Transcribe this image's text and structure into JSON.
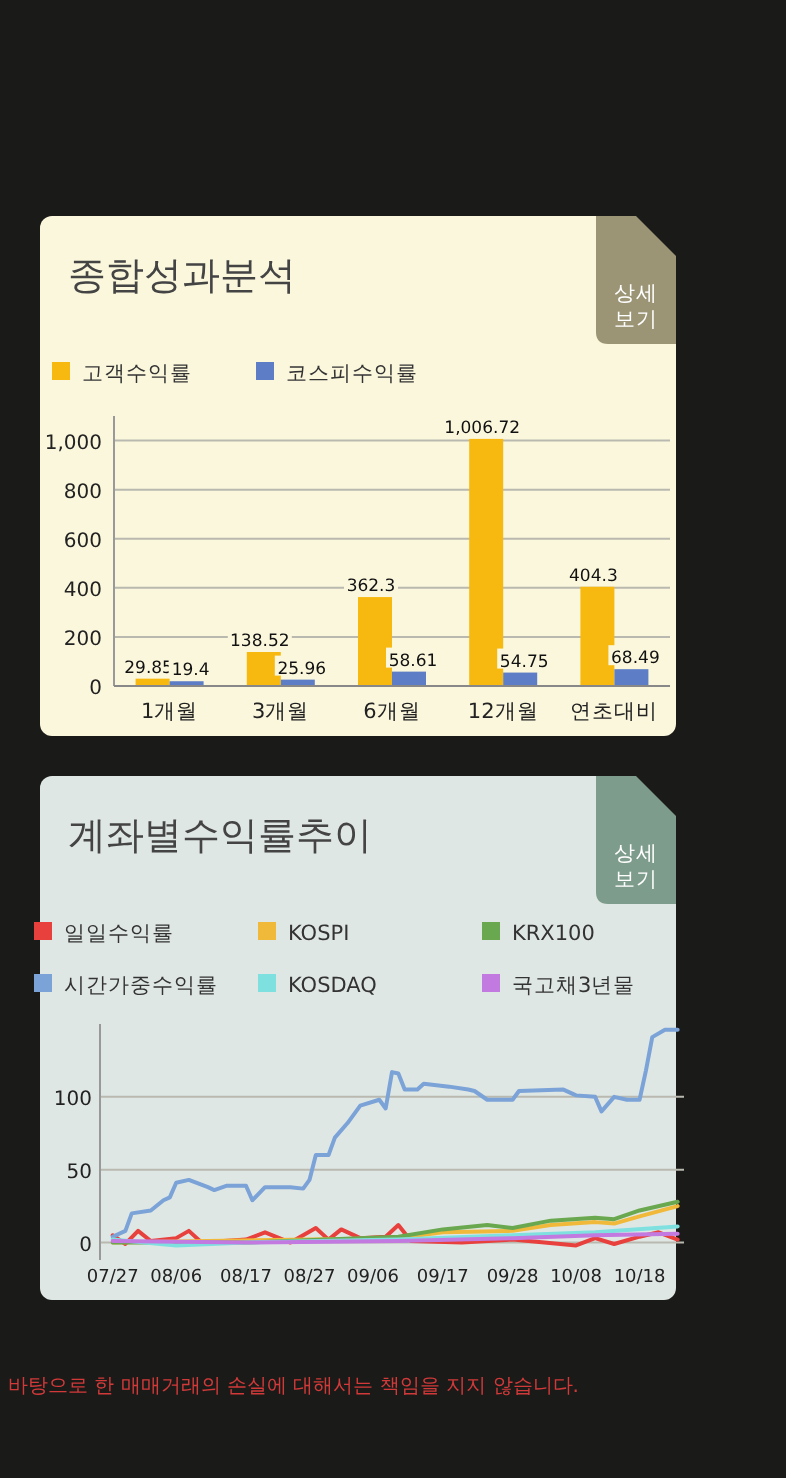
{
  "chart_data": [
    {
      "type": "bar",
      "title": "종합성과분석",
      "annotations": [
        "상세 보기"
      ],
      "categories": [
        "1개월",
        "3개월",
        "6개월",
        "12개월",
        "연초대비"
      ],
      "series": [
        {
          "name": "고객수익률",
          "color": "#f7b90f",
          "values": [
            29.85,
            138.52,
            362.3,
            1006.72,
            404.3
          ],
          "value_labels": [
            "29.85",
            "138.52",
            "362.3",
            "1,006.72",
            "404.3"
          ]
        },
        {
          "name": "코스피수익률",
          "color": "#5d7ec6",
          "values": [
            19.4,
            25.96,
            58.61,
            54.75,
            68.49
          ],
          "value_labels": [
            "19.4",
            "25.96",
            "58.61",
            "54.75",
            "68.49"
          ]
        }
      ],
      "ylim": [
        0,
        1100
      ],
      "yticks": [
        0,
        200,
        400,
        600,
        800,
        {
          "value": 1000,
          "label": "1,000"
        }
      ],
      "grid": "y",
      "legend": "top left"
    },
    {
      "type": "line",
      "title": "계좌별수익률추이",
      "annotations": [
        "상세 보기",
        "바탕으로 한 매매거래의 손실에 대해서는 책임을 지지 않습니다."
      ],
      "series": [
        {
          "name": "일일수익률",
          "color": "#e8403c",
          "x": [
            "--07-27",
            "--07-29",
            "--07-31",
            "--08-02",
            "--08-06",
            "--08-08",
            "--08-10",
            "--08-17",
            "--08-20",
            "--08-24",
            "--08-28",
            "--08-30",
            "--09-01",
            "--09-04",
            "--09-08",
            "--09-10",
            "--09-12",
            "--09-20",
            "--09-28",
            "--10-08",
            "--10-11",
            "--10-14",
            "--10-18",
            "--10-21",
            "--10-24"
          ],
          "values": [
            5,
            -1,
            8,
            1,
            3,
            8,
            0,
            2,
            7,
            0,
            10,
            2,
            9,
            3,
            4,
            12,
            1,
            0,
            2,
            -2,
            3,
            -1,
            4,
            7,
            2
          ]
        },
        {
          "name": "KOSPI",
          "color": "#f0b93a",
          "x": [
            "--07-27",
            "--09-10",
            "--09-17",
            "--09-28",
            "--10-04",
            "--10-11",
            "--10-14",
            "--10-18",
            "--10-24"
          ],
          "values": [
            0,
            3,
            7,
            8,
            12,
            14,
            13,
            18,
            25
          ]
        },
        {
          "name": "KRX100",
          "color": "#6aa84f",
          "x": [
            "--07-27",
            "--08-17",
            "--09-10",
            "--09-17",
            "--09-24",
            "--09-28",
            "--10-04",
            "--10-11",
            "--10-14",
            "--10-18",
            "--10-24"
          ],
          "values": [
            0,
            0,
            4,
            9,
            12,
            10,
            15,
            17,
            16,
            22,
            28
          ]
        },
        {
          "name": "시간가중수익률",
          "color": "#7ba3d8",
          "x": [
            "--07-27",
            "--07-29",
            "--07-30",
            "--08-02",
            "--08-04",
            "--08-05",
            "--08-06",
            "--08-08",
            "--08-11",
            "--08-12",
            "--08-14",
            "--08-17",
            "--08-18",
            "--08-20",
            "--08-24",
            "--08-26",
            "--08-27",
            "--08-28",
            "--08-30",
            "--08-31",
            "--09-02",
            "--09-04",
            "--09-07",
            "--09-08",
            "--09-09",
            "--09-10",
            "--09-11",
            "--09-13",
            "--09-14",
            "--09-18",
            "--09-21",
            "--09-22",
            "--09-24",
            "--09-28",
            "--09-29",
            "--10-06",
            "--10-08",
            "--10-11",
            "--10-12",
            "--10-14",
            "--10-16",
            "--10-18",
            "--10-19",
            "--10-20",
            "--10-22",
            "--10-24"
          ],
          "values": [
            4,
            8,
            20,
            22,
            29,
            31,
            41,
            43,
            38,
            36,
            39,
            39,
            29,
            38,
            38,
            37,
            43,
            60,
            60,
            72,
            82,
            94,
            98,
            92,
            117,
            116,
            105,
            105,
            109,
            107,
            105,
            104,
            98,
            98,
            104,
            105,
            101,
            100,
            90,
            100,
            98,
            98,
            118,
            141,
            146,
            146
          ]
        },
        {
          "name": "KOSDAQ",
          "color": "#7fe0e0",
          "x": [
            "--07-27",
            "--08-06",
            "--08-17",
            "--09-10",
            "--09-28",
            "--10-11",
            "--10-24"
          ],
          "values": [
            2,
            -2,
            0,
            2,
            5,
            7,
            11
          ]
        },
        {
          "name": "국고채3년물",
          "color": "#c27ae0",
          "x": [
            "--07-27",
            "--08-17",
            "--09-10",
            "--09-28",
            "--10-11",
            "--10-24"
          ],
          "values": [
            1,
            0,
            1,
            3,
            5,
            6
          ]
        }
      ],
      "xlim": [
        "--07-25",
        "--10-25"
      ],
      "xticks": [
        {
          "value": "--07-27",
          "label": "07/27"
        },
        {
          "value": "--08-06",
          "label": "08/06"
        },
        {
          "value": "--08-17",
          "label": "08/17"
        },
        {
          "value": "--08-27",
          "label": "08/27"
        },
        {
          "value": "--09-06",
          "label": "09/06"
        },
        {
          "value": "--09-17",
          "label": "09/17"
        },
        {
          "value": "--09-28",
          "label": "09/28"
        },
        {
          "value": "--10-08",
          "label": "10/08"
        },
        {
          "value": "--10-18",
          "label": "10/18"
        }
      ],
      "ylim": [
        -12,
        150
      ],
      "yticks": [
        0,
        50,
        100
      ],
      "grid": "y",
      "legend": "top"
    }
  ]
}
